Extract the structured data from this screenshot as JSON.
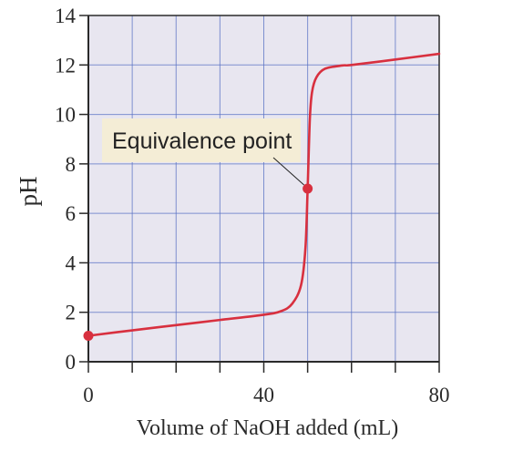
{
  "chart_data": {
    "type": "line",
    "xlabel": "Volume of NaOH added (mL)",
    "ylabel": "pH",
    "xlim": [
      0,
      80
    ],
    "ylim": [
      0,
      14
    ],
    "x_ticks": [
      0,
      10,
      20,
      30,
      40,
      50,
      60,
      70,
      80
    ],
    "x_tick_labels": [
      {
        "value": 0,
        "label": "0"
      },
      {
        "value": 40,
        "label": "40"
      },
      {
        "value": 80,
        "label": "80"
      }
    ],
    "y_ticks": [
      0,
      2,
      4,
      6,
      8,
      10,
      12,
      14
    ],
    "y_tick_labels": [
      {
        "value": 0,
        "label": "0"
      },
      {
        "value": 2,
        "label": "2"
      },
      {
        "value": 4,
        "label": "4"
      },
      {
        "value": 6,
        "label": "6"
      },
      {
        "value": 8,
        "label": "8"
      },
      {
        "value": 10,
        "label": "10"
      },
      {
        "value": 12,
        "label": "12"
      },
      {
        "value": 14,
        "label": "14"
      }
    ],
    "grid": true,
    "series": [
      {
        "color": "#d8303f",
        "points": [
          [
            0,
            1.05
          ],
          [
            10,
            1.27
          ],
          [
            20,
            1.48
          ],
          [
            30,
            1.69
          ],
          [
            40,
            1.9
          ],
          [
            44,
            2.05
          ],
          [
            46.5,
            2.35
          ],
          [
            48.5,
            3.1
          ],
          [
            49.5,
            4.6
          ],
          [
            50,
            7.0
          ],
          [
            50.5,
            9.8
          ],
          [
            51,
            10.9
          ],
          [
            52,
            11.5
          ],
          [
            54,
            11.85
          ],
          [
            58,
            11.98
          ],
          [
            60,
            12.0
          ],
          [
            70,
            12.22
          ],
          [
            80,
            12.45
          ]
        ]
      }
    ],
    "markers": [
      {
        "x": 0,
        "y": 1.05,
        "color": "#d8303f"
      },
      {
        "x": 50,
        "y": 7.0,
        "color": "#d8303f"
      }
    ],
    "annotations": [
      {
        "text": "Equivalence point",
        "target_x": 50,
        "target_y": 7.0,
        "box_color": "#f4edd6"
      }
    ],
    "colors": {
      "plot_background": "#e8e6f0",
      "grid": "#5a72c4",
      "axis": "#2a2a2a"
    }
  }
}
